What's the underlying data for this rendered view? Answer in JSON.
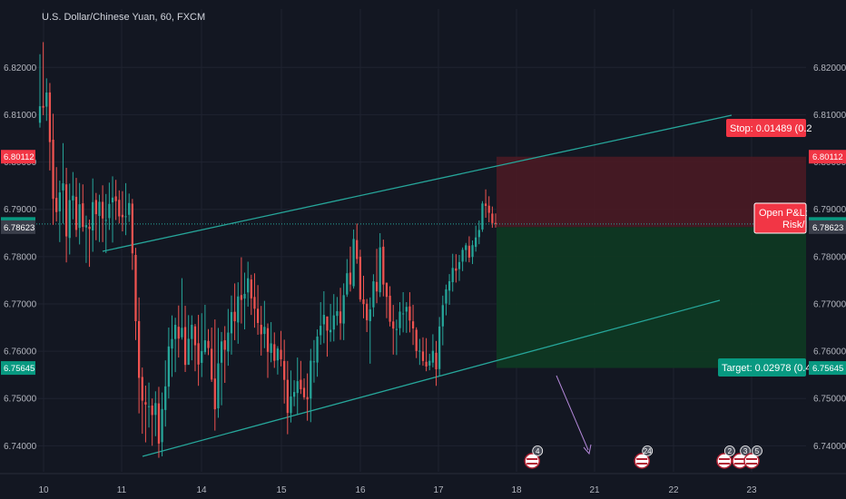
{
  "header": {
    "title": "U.S. Dollar/Chinese Yuan, 60, FXCM"
  },
  "colors": {
    "background": "#131722",
    "grid": "#1f2330",
    "up": "#26a69a",
    "down": "#ef5350",
    "channel": "#26a69a",
    "stop_zone": "#4a1a24",
    "target_zone": "#0e3a22",
    "stop_label": "#f23645",
    "target_label": "#089981",
    "price_tag": "#3a3e4a",
    "arrow": "#b388d9"
  },
  "chart_data": {
    "type": "candlestick",
    "symbol": "U.S. Dollar/Chinese Yuan",
    "interval": "60",
    "source": "FXCM",
    "x_ticks": [
      "10",
      "11",
      "14",
      "15",
      "16",
      "17",
      "18",
      "21",
      "22",
      "23"
    ],
    "y_ticks": [
      "6.82000",
      "6.81000",
      "6.80000",
      "6.79000",
      "6.78000",
      "6.77000",
      "6.76000",
      "6.75000",
      "6.74000"
    ],
    "ylim": [
      6.7345,
      6.8285
    ],
    "ohlc": [
      [
        6.80829,
        6.82279,
        6.80729,
        6.81179
      ],
      [
        6.81185,
        6.82535,
        6.8099,
        6.8115
      ],
      [
        6.81169,
        6.81769,
        6.80869,
        6.81469
      ],
      [
        6.81471,
        6.81671,
        6.79821,
        6.80421
      ],
      [
        6.80471,
        6.81021,
        6.78671,
        6.79221
      ],
      [
        6.79242,
        6.79892,
        6.78742,
        6.78942
      ],
      [
        6.78957,
        6.79607,
        6.78307,
        6.79357
      ],
      [
        6.79399,
        6.80399,
        6.78699,
        6.79549
      ],
      [
        6.79527,
        6.79877,
        6.77877,
        6.78427
      ],
      [
        6.78394,
        6.79544,
        6.78044,
        6.79194
      ],
      [
        6.79188,
        6.79788,
        6.78788,
        6.79288
      ],
      [
        6.79264,
        6.79664,
        6.78414,
        6.78564
      ],
      [
        6.78607,
        6.79557,
        6.78257,
        6.79107
      ],
      [
        6.79127,
        6.79527,
        6.78527,
        6.78627
      ],
      [
        6.78616,
        6.78866,
        6.77866,
        6.78666
      ],
      [
        6.78633,
        6.78783,
        6.77783,
        6.78583
      ],
      [
        6.78552,
        6.79652,
        6.78102,
        6.79152
      ],
      [
        6.79196,
        6.79346,
        6.78346,
        6.78896
      ],
      [
        6.78859,
        6.79309,
        6.78309,
        6.79159
      ],
      [
        6.79157,
        6.79507,
        6.78307,
        6.78807
      ],
      [
        6.78774,
        6.79324,
        6.78074,
        6.78774
      ],
      [
        6.78814,
        6.79564,
        6.78564,
        6.79114
      ],
      [
        6.79147,
        6.79697,
        6.78297,
        6.79247
      ],
      [
        6.79273,
        6.79623,
        6.78773,
        6.79173
      ],
      [
        6.792,
        6.794,
        6.787,
        6.7885
      ],
      [
        6.78883,
        6.79383,
        6.78533,
        6.78833
      ],
      [
        6.78853,
        6.79553,
        6.78453,
        6.78853
      ],
      [
        6.78883,
        6.79333,
        6.78733,
        6.79133
      ],
      [
        6.79119,
        6.79219,
        6.77719,
        6.78069
      ],
      [
        6.78035,
        6.78185,
        6.76235,
        6.76635
      ],
      [
        6.76636,
        6.77136,
        6.74686,
        6.75436
      ],
      [
        6.75454,
        6.75654,
        6.74254,
        6.74954
      ],
      [
        6.74922,
        6.75272,
        6.74072,
        6.74872
      ],
      [
        6.74836,
        6.75336,
        6.74386,
        6.74836
      ],
      [
        6.7485,
        6.75,
        6.74,
        6.7465
      ],
      [
        6.74652,
        6.75152,
        6.74202,
        6.74902
      ],
      [
        6.74896,
        6.75246,
        6.73746,
        6.74046
      ],
      [
        6.74077,
        6.75127,
        6.73777,
        6.74777
      ],
      [
        6.74756,
        6.75806,
        6.74406,
        6.75256
      ],
      [
        6.7525,
        6.765,
        6.75,
        6.761
      ],
      [
        6.76056,
        6.76756,
        6.75456,
        6.76256
      ],
      [
        6.76257,
        6.76707,
        6.75557,
        6.76557
      ],
      [
        6.76516,
        6.76966,
        6.75866,
        6.76266
      ],
      [
        6.76294,
        6.77544,
        6.76244,
        6.76494
      ],
      [
        6.7651,
        6.7696,
        6.7556,
        6.7571
      ],
      [
        6.75712,
        6.76762,
        6.75712,
        6.76262
      ],
      [
        6.76257,
        6.76757,
        6.75807,
        6.76557
      ],
      [
        6.76525,
        6.76575,
        6.75575,
        6.76125
      ],
      [
        6.76168,
        6.76768,
        6.75268,
        6.75718
      ],
      [
        6.75753,
        6.76803,
        6.75453,
        6.76003
      ],
      [
        6.7598,
        6.7698,
        6.7593,
        6.7623
      ],
      [
        6.76217,
        6.76467,
        6.75917,
        6.76067
      ],
      [
        6.7605,
        6.765,
        6.7535,
        6.754
      ],
      [
        6.75421,
        6.76671,
        6.74321,
        6.74771
      ],
      [
        6.74792,
        6.76492,
        6.74592,
        6.75742
      ],
      [
        6.75756,
        6.76406,
        6.74856,
        6.76206
      ],
      [
        6.7623,
        6.7653,
        6.7533,
        6.7603
      ],
      [
        6.75993,
        6.76893,
        6.75693,
        6.76393
      ],
      [
        6.76377,
        6.77177,
        6.75927,
        6.76827
      ],
      [
        6.76833,
        6.77433,
        6.76233,
        6.76633
      ],
      [
        6.76607,
        6.77457,
        6.76157,
        6.77157
      ],
      [
        6.77185,
        6.77985,
        6.76585,
        6.77085
      ],
      [
        6.77111,
        6.77661,
        6.76461,
        6.77211
      ],
      [
        6.77242,
        6.77892,
        6.76942,
        6.77542
      ],
      [
        6.77516,
        6.77616,
        6.76766,
        6.77116
      ],
      [
        6.77147,
        6.77647,
        6.76497,
        6.76897
      ],
      [
        6.76897,
        6.77397,
        6.76347,
        6.76597
      ],
      [
        6.76557,
        6.76957,
        6.75907,
        6.76357
      ],
      [
        6.76364,
        6.77064,
        6.76064,
        6.76514
      ],
      [
        6.76486,
        6.76586,
        6.75436,
        6.75986
      ],
      [
        6.75965,
        6.76615,
        6.75765,
        6.76165
      ],
      [
        6.76147,
        6.76397,
        6.75647,
        6.75797
      ],
      [
        6.75806,
        6.76106,
        6.75506,
        6.76056
      ],
      [
        6.76029,
        6.76429,
        6.75679,
        6.75829
      ],
      [
        6.75793,
        6.76243,
        6.74893,
        6.75393
      ],
      [
        6.75394,
        6.75794,
        6.74244,
        6.74694
      ],
      [
        6.74692,
        6.75592,
        6.74492,
        6.75042
      ],
      [
        6.75036,
        6.75386,
        6.74836,
        6.75136
      ],
      [
        6.75116,
        6.75866,
        6.74666,
        6.75366
      ],
      [
        6.75395,
        6.75795,
        6.75095,
        6.75195
      ],
      [
        6.75225,
        6.75425,
        6.74975,
        6.75025
      ],
      [
        6.7503,
        6.7553,
        6.7453,
        6.7498
      ],
      [
        6.74999,
        6.76049,
        6.74499,
        6.75799
      ],
      [
        6.75785,
        6.76235,
        6.75335,
        6.75785
      ],
      [
        6.7576,
        6.7646,
        6.7546,
        6.7631
      ],
      [
        6.76337,
        6.77037,
        6.76137,
        6.76537
      ],
      [
        6.76568,
        6.77268,
        6.76168,
        6.76768
      ],
      [
        6.76734,
        6.76734,
        6.75884,
        6.76434
      ],
      [
        6.764,
        6.77,
        6.762,
        6.7645
      ],
      [
        6.76457,
        6.77207,
        6.76207,
        6.76757
      ],
      [
        6.76746,
        6.77146,
        6.76546,
        6.76846
      ],
      [
        6.7684,
        6.7734,
        6.7624,
        6.7659
      ],
      [
        6.76584,
        6.77434,
        6.76234,
        6.77184
      ],
      [
        6.77198,
        6.77948,
        6.77148,
        6.77648
      ],
      [
        6.77661,
        6.78211,
        6.77261,
        6.77411
      ],
      [
        6.77373,
        6.78573,
        6.77323,
        6.78373
      ],
      [
        6.78349,
        6.78699,
        6.77849,
        6.77949
      ],
      [
        6.77995,
        6.78145,
        6.77045,
        6.77095
      ],
      [
        6.77095,
        6.77595,
        6.76695,
        6.76995
      ],
      [
        6.77004,
        6.77104,
        6.76404,
        6.76654
      ],
      [
        6.76636,
        6.77136,
        6.75736,
        6.76886
      ],
      [
        6.76927,
        6.77627,
        6.76727,
        6.77477
      ],
      [
        6.77464,
        6.78164,
        6.77014,
        6.77264
      ],
      [
        6.77245,
        6.78495,
        6.77145,
        6.78195
      ],
      [
        6.78209,
        6.78359,
        6.77159,
        6.77409
      ],
      [
        6.77448,
        6.77448,
        6.76698,
        6.77148
      ],
      [
        6.77173,
        6.77373,
        6.76523,
        6.76623
      ],
      [
        6.76628,
        6.76978,
        6.75928,
        6.76478
      ],
      [
        6.76468,
        6.76668,
        6.75918,
        6.76468
      ],
      [
        6.76487,
        6.77037,
        6.76337,
        6.76837
      ],
      [
        6.76798,
        6.77248,
        6.76398,
        6.76798
      ],
      [
        6.76837,
        6.77037,
        6.76387,
        6.76937
      ],
      [
        6.76947,
        6.77247,
        6.76397,
        6.76647
      ],
      [
        6.76631,
        6.76981,
        6.76131,
        6.76481
      ],
      [
        6.76454,
        6.76504,
        6.75854,
        6.76004
      ],
      [
        6.7601,
        6.7626,
        6.7571,
        6.7601
      ],
      [
        6.75993,
        6.76293,
        6.75693,
        6.75793
      ],
      [
        6.75776,
        6.76276,
        6.75576,
        6.75676
      ],
      [
        6.75696,
        6.75946,
        6.75596,
        6.75796
      ],
      [
        6.75758,
        6.76358,
        6.75658,
        6.76008
      ],
      [
        6.75967,
        6.76217,
        6.75267,
        6.75617
      ],
      [
        6.75622,
        6.76722,
        6.75472,
        6.76522
      ],
      [
        6.76524,
        6.77174,
        6.76124,
        6.76974
      ],
      [
        6.77008,
        6.77408,
        6.76758,
        6.77308
      ],
      [
        6.7728,
        6.7763,
        6.7698,
        6.7748
      ],
      [
        6.7746,
        6.7806,
        6.7726,
        6.7776
      ],
      [
        6.77751,
        6.78051,
        6.77451,
        6.77701
      ],
      [
        6.77735,
        6.78035,
        6.77485,
        6.77885
      ],
      [
        6.77893,
        6.78193,
        6.77693,
        6.78143
      ],
      [
        6.78139,
        6.78289,
        6.77889,
        6.78239
      ],
      [
        6.78229,
        6.78429,
        6.77879,
        6.77979
      ],
      [
        6.77992,
        6.78342,
        6.77842,
        6.78242
      ],
      [
        6.78205,
        6.78655,
        6.78105,
        6.78405
      ],
      [
        6.78412,
        6.78762,
        6.78262,
        6.78562
      ],
      [
        6.78573,
        6.79173,
        6.78523,
        6.79123
      ],
      [
        6.79121,
        6.79421,
        6.78821,
        6.79071
      ],
      [
        6.79076,
        6.79276,
        6.78726,
        6.78926
      ],
      [
        6.78909,
        6.79059,
        6.78609,
        6.78709
      ],
      [
        6.78712,
        6.78912,
        6.78612,
        6.7869
      ]
    ],
    "price_tags": [
      {
        "text": "6.80112",
        "value": 6.80112,
        "color": "#f23645"
      },
      {
        "text": "6.78690",
        "value": 6.7869,
        "color": "#089981"
      },
      {
        "text": "53:03",
        "value": 6.78657,
        "color": "#089981"
      },
      {
        "text": "6.78623",
        "value": 6.78623,
        "color": "#3a3e4a"
      },
      {
        "text": "6.75645",
        "value": 6.75645,
        "color": "#089981"
      }
    ],
    "position": {
      "entry": 6.78623,
      "stop": 6.80112,
      "target": 6.75645,
      "stop_label": "Stop: 0.01489 (0.2",
      "target_label": "Target: 0.02978 (0.4",
      "pl_label_line1": "Open P&L:",
      "pl_label_line2": "Risk/I"
    },
    "events": [
      {
        "label": "4",
        "x_day": 18.6
      },
      {
        "label": "24",
        "x_day": 21.6
      },
      {
        "label": "2",
        "x_day": 22.65
      },
      {
        "label": "3",
        "x_day": 22.85
      },
      {
        "label": "5",
        "x_day": 23.55
      }
    ]
  }
}
